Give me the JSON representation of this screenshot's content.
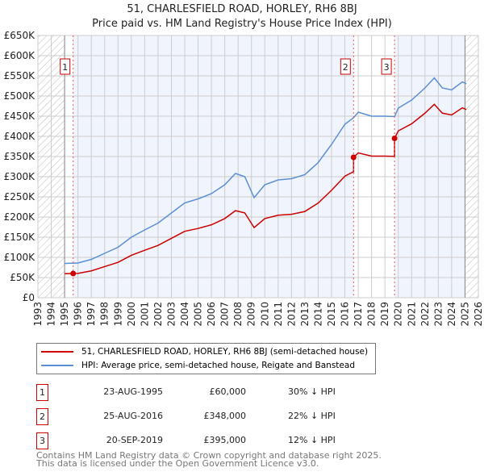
{
  "chart_data": {
    "type": "line",
    "title": "51, CHARLESFIELD ROAD, HORLEY, RH6 8BJ",
    "subtitle": "Price paid vs. HM Land Registry's House Price Index (HPI)",
    "xlim": [
      1993,
      2026
    ],
    "ylim": [
      0,
      650000
    ],
    "x_ticks": [
      "1993",
      "1994",
      "1995",
      "1996",
      "1997",
      "1998",
      "1999",
      "2000",
      "2001",
      "2002",
      "2003",
      "2004",
      "2005",
      "2006",
      "2007",
      "2008",
      "2009",
      "2010",
      "2011",
      "2012",
      "2013",
      "2014",
      "2015",
      "2016",
      "2017",
      "2018",
      "2019",
      "2020",
      "2021",
      "2022",
      "2023",
      "2024",
      "2025",
      "2026"
    ],
    "y_ticks": [
      {
        "v": 0,
        "label": "£0"
      },
      {
        "v": 50000,
        "label": "£50K"
      },
      {
        "v": 100000,
        "label": "£100K"
      },
      {
        "v": 150000,
        "label": "£150K"
      },
      {
        "v": 200000,
        "label": "£200K"
      },
      {
        "v": 250000,
        "label": "£250K"
      },
      {
        "v": 300000,
        "label": "£300K"
      },
      {
        "v": 350000,
        "label": "£350K"
      },
      {
        "v": 400000,
        "label": "£400K"
      },
      {
        "v": 450000,
        "label": "£450K"
      },
      {
        "v": 500000,
        "label": "£500K"
      },
      {
        "v": 550000,
        "label": "£550K"
      },
      {
        "v": 600000,
        "label": "£600K"
      },
      {
        "v": 650000,
        "label": "£650K"
      }
    ],
    "hatched_before": 1995.0,
    "hatched_after": 2025.0,
    "grid": true,
    "series": [
      {
        "name": "hpi",
        "color": "#5b8fd4",
        "x": [
          1995,
          1996,
          1997,
          1998,
          1999,
          2000,
          2001,
          2002,
          2003,
          2004,
          2005,
          2006,
          2007,
          2007.8,
          2008.5,
          2009.2,
          2010,
          2011,
          2012,
          2013,
          2014,
          2015,
          2016,
          2016.65,
          2017,
          2018,
          2019,
          2019.72,
          2020,
          2021,
          2022,
          2022.7,
          2023.3,
          2024,
          2024.8,
          2025.1
        ],
        "y": [
          85000,
          86000,
          95000,
          110000,
          125000,
          150000,
          168000,
          185000,
          210000,
          235000,
          245000,
          258000,
          280000,
          308000,
          300000,
          248000,
          280000,
          292000,
          295000,
          305000,
          335000,
          380000,
          430000,
          446000,
          460000,
          450000,
          450000,
          449000,
          470000,
          490000,
          520000,
          545000,
          520000,
          515000,
          535000,
          530000
        ]
      },
      {
        "name": "price_paid",
        "color": "#cc0000",
        "derived_from": "hpi scaled by last sale ratio"
      }
    ],
    "sales": [
      {
        "n": "1",
        "x": 1995.64,
        "date": "23-AUG-1995",
        "price": 60000,
        "price_label": "£60,000",
        "hpi_diff": "30% ↓ HPI"
      },
      {
        "n": "2",
        "x": 2016.65,
        "date": "25-AUG-2016",
        "price": 348000,
        "price_label": "£348,000",
        "hpi_diff": "22% ↓ HPI"
      },
      {
        "n": "3",
        "x": 2019.72,
        "date": "20-SEP-2019",
        "price": 395000,
        "price_label": "£395,000",
        "hpi_diff": "12% ↓ HPI"
      }
    ],
    "legend": {
      "placement": "below",
      "items": [
        {
          "label": "51, CHARLESFIELD ROAD, HORLEY, RH6 8BJ (semi-detached house)",
          "color": "#cc0000"
        },
        {
          "label": "HPI: Average price, semi-detached house, Reigate and Banstead",
          "color": "#5b8fd4"
        }
      ]
    }
  },
  "footer": {
    "line1": "Contains HM Land Registry data © Crown copyright and database right 2025.",
    "line2": "This data is licensed under the Open Government Licence v3.0."
  }
}
